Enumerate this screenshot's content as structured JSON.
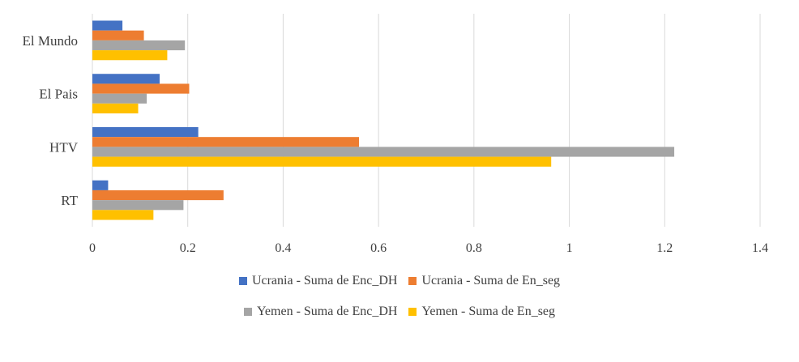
{
  "chart_data": {
    "type": "bar",
    "orientation": "horizontal",
    "categories": [
      "El Mundo",
      "El Pais",
      "HTV",
      "RT"
    ],
    "series": [
      {
        "name": "Ucrania - Suma de Enc_DH",
        "color": "#4472C4",
        "values": [
          0.063,
          0.141,
          0.222,
          0.033
        ]
      },
      {
        "name": "Ucrania - Suma de En_seg",
        "color": "#ED7D31",
        "values": [
          0.108,
          0.203,
          0.559,
          0.275
        ]
      },
      {
        "name": "Yemen - Suma de Enc_DH",
        "color": "#A5A5A5",
        "values": [
          0.194,
          0.114,
          1.22,
          0.191
        ]
      },
      {
        "name": "Yemen - Suma de En_seg",
        "color": "#FFC000",
        "values": [
          0.157,
          0.096,
          0.962,
          0.128
        ]
      }
    ],
    "xlim": [
      0,
      1.4
    ],
    "xticks": [
      "0",
      "0.2",
      "0.4",
      "0.6",
      "0.8",
      "1",
      "1.2",
      "1.4"
    ],
    "grid": true,
    "legend_position": "bottom"
  }
}
